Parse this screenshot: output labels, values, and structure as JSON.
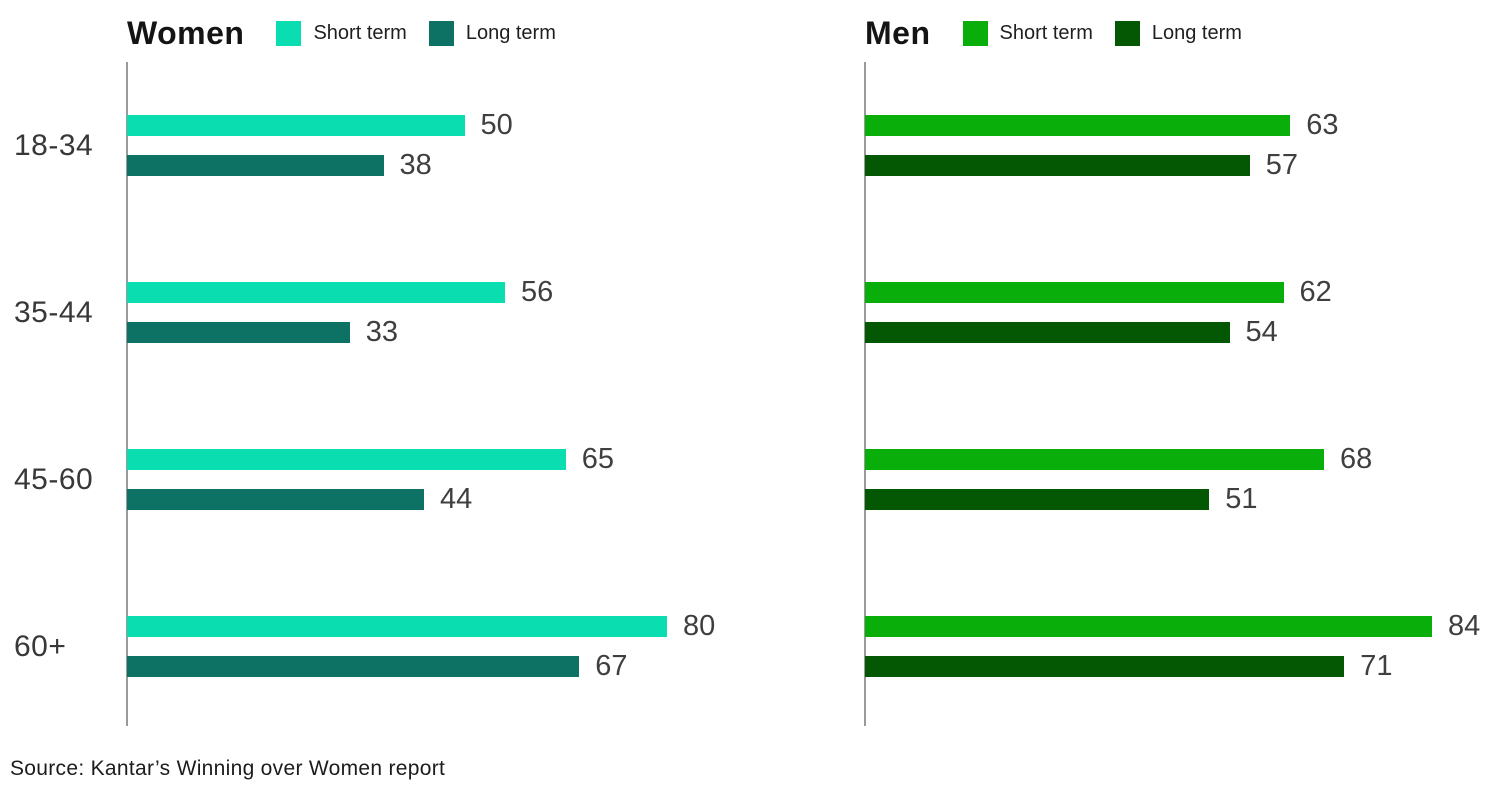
{
  "source": "Source: Kantar’s Winning over Women report",
  "chart_data": [
    {
      "type": "bar",
      "orientation": "horizontal",
      "title": "Women",
      "categories": [
        "18-34",
        "35-44",
        "45-60",
        "60+"
      ],
      "series": [
        {
          "name": "Short term",
          "color": "#0ADDB0",
          "values": [
            50,
            56,
            65,
            80
          ]
        },
        {
          "name": "Long term",
          "color": "#0D7263",
          "values": [
            38,
            33,
            44,
            67
          ]
        }
      ],
      "xlim": [
        0,
        100
      ],
      "value_labels": true,
      "show_category_labels": true,
      "legend_position": "top",
      "grid": false
    },
    {
      "type": "bar",
      "orientation": "horizontal",
      "title": "Men",
      "categories": [
        "18-34",
        "35-44",
        "45-60",
        "60+"
      ],
      "series": [
        {
          "name": "Short term",
          "color": "#0AAE0B",
          "values": [
            63,
            62,
            68,
            84
          ]
        },
        {
          "name": "Long term",
          "color": "#045804",
          "values": [
            57,
            54,
            51,
            71
          ]
        }
      ],
      "xlim": [
        0,
        100
      ],
      "value_labels": true,
      "show_category_labels": false,
      "legend_position": "top",
      "grid": false
    }
  ]
}
